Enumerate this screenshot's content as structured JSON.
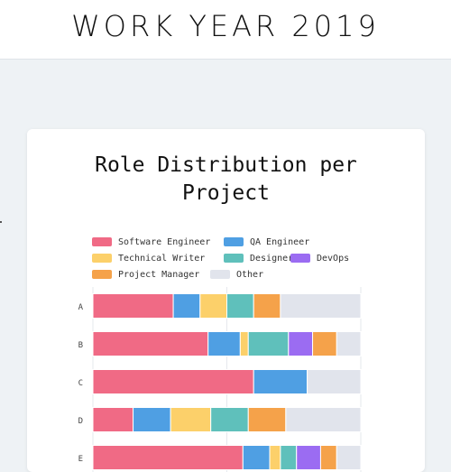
{
  "header": {
    "title": "WORK YEAR 2019"
  },
  "chart_data": {
    "type": "bar",
    "orientation": "horizontal",
    "stacked": true,
    "title_lines": [
      "Role Distribution per",
      "Project"
    ],
    "categories": [
      "A",
      "B",
      "C",
      "D",
      "E"
    ],
    "xlim": [
      0,
      100
    ],
    "grid": true,
    "legend_position": "top",
    "series": [
      {
        "name": "Software Engineer",
        "color": "#f06a85",
        "values": [
          30,
          43,
          60,
          15,
          56
        ]
      },
      {
        "name": "QA Engineer",
        "color": "#4f9fe3",
        "values": [
          10,
          12,
          20,
          14,
          10
        ]
      },
      {
        "name": "Technical Writer",
        "color": "#fcd06a",
        "values": [
          10,
          3,
          0,
          15,
          4
        ]
      },
      {
        "name": "Designer",
        "color": "#5fc0bb",
        "values": [
          10,
          15,
          0,
          14,
          6
        ]
      },
      {
        "name": "DevOps",
        "color": "#9b6cf2",
        "values": [
          0,
          9,
          0,
          0,
          9
        ]
      },
      {
        "name": "Project Manager",
        "color": "#f5a24a",
        "values": [
          10,
          9,
          0,
          14,
          6
        ]
      },
      {
        "name": "Other",
        "color": "#e1e4ec",
        "values": [
          30,
          9,
          20,
          28,
          9
        ]
      }
    ]
  }
}
